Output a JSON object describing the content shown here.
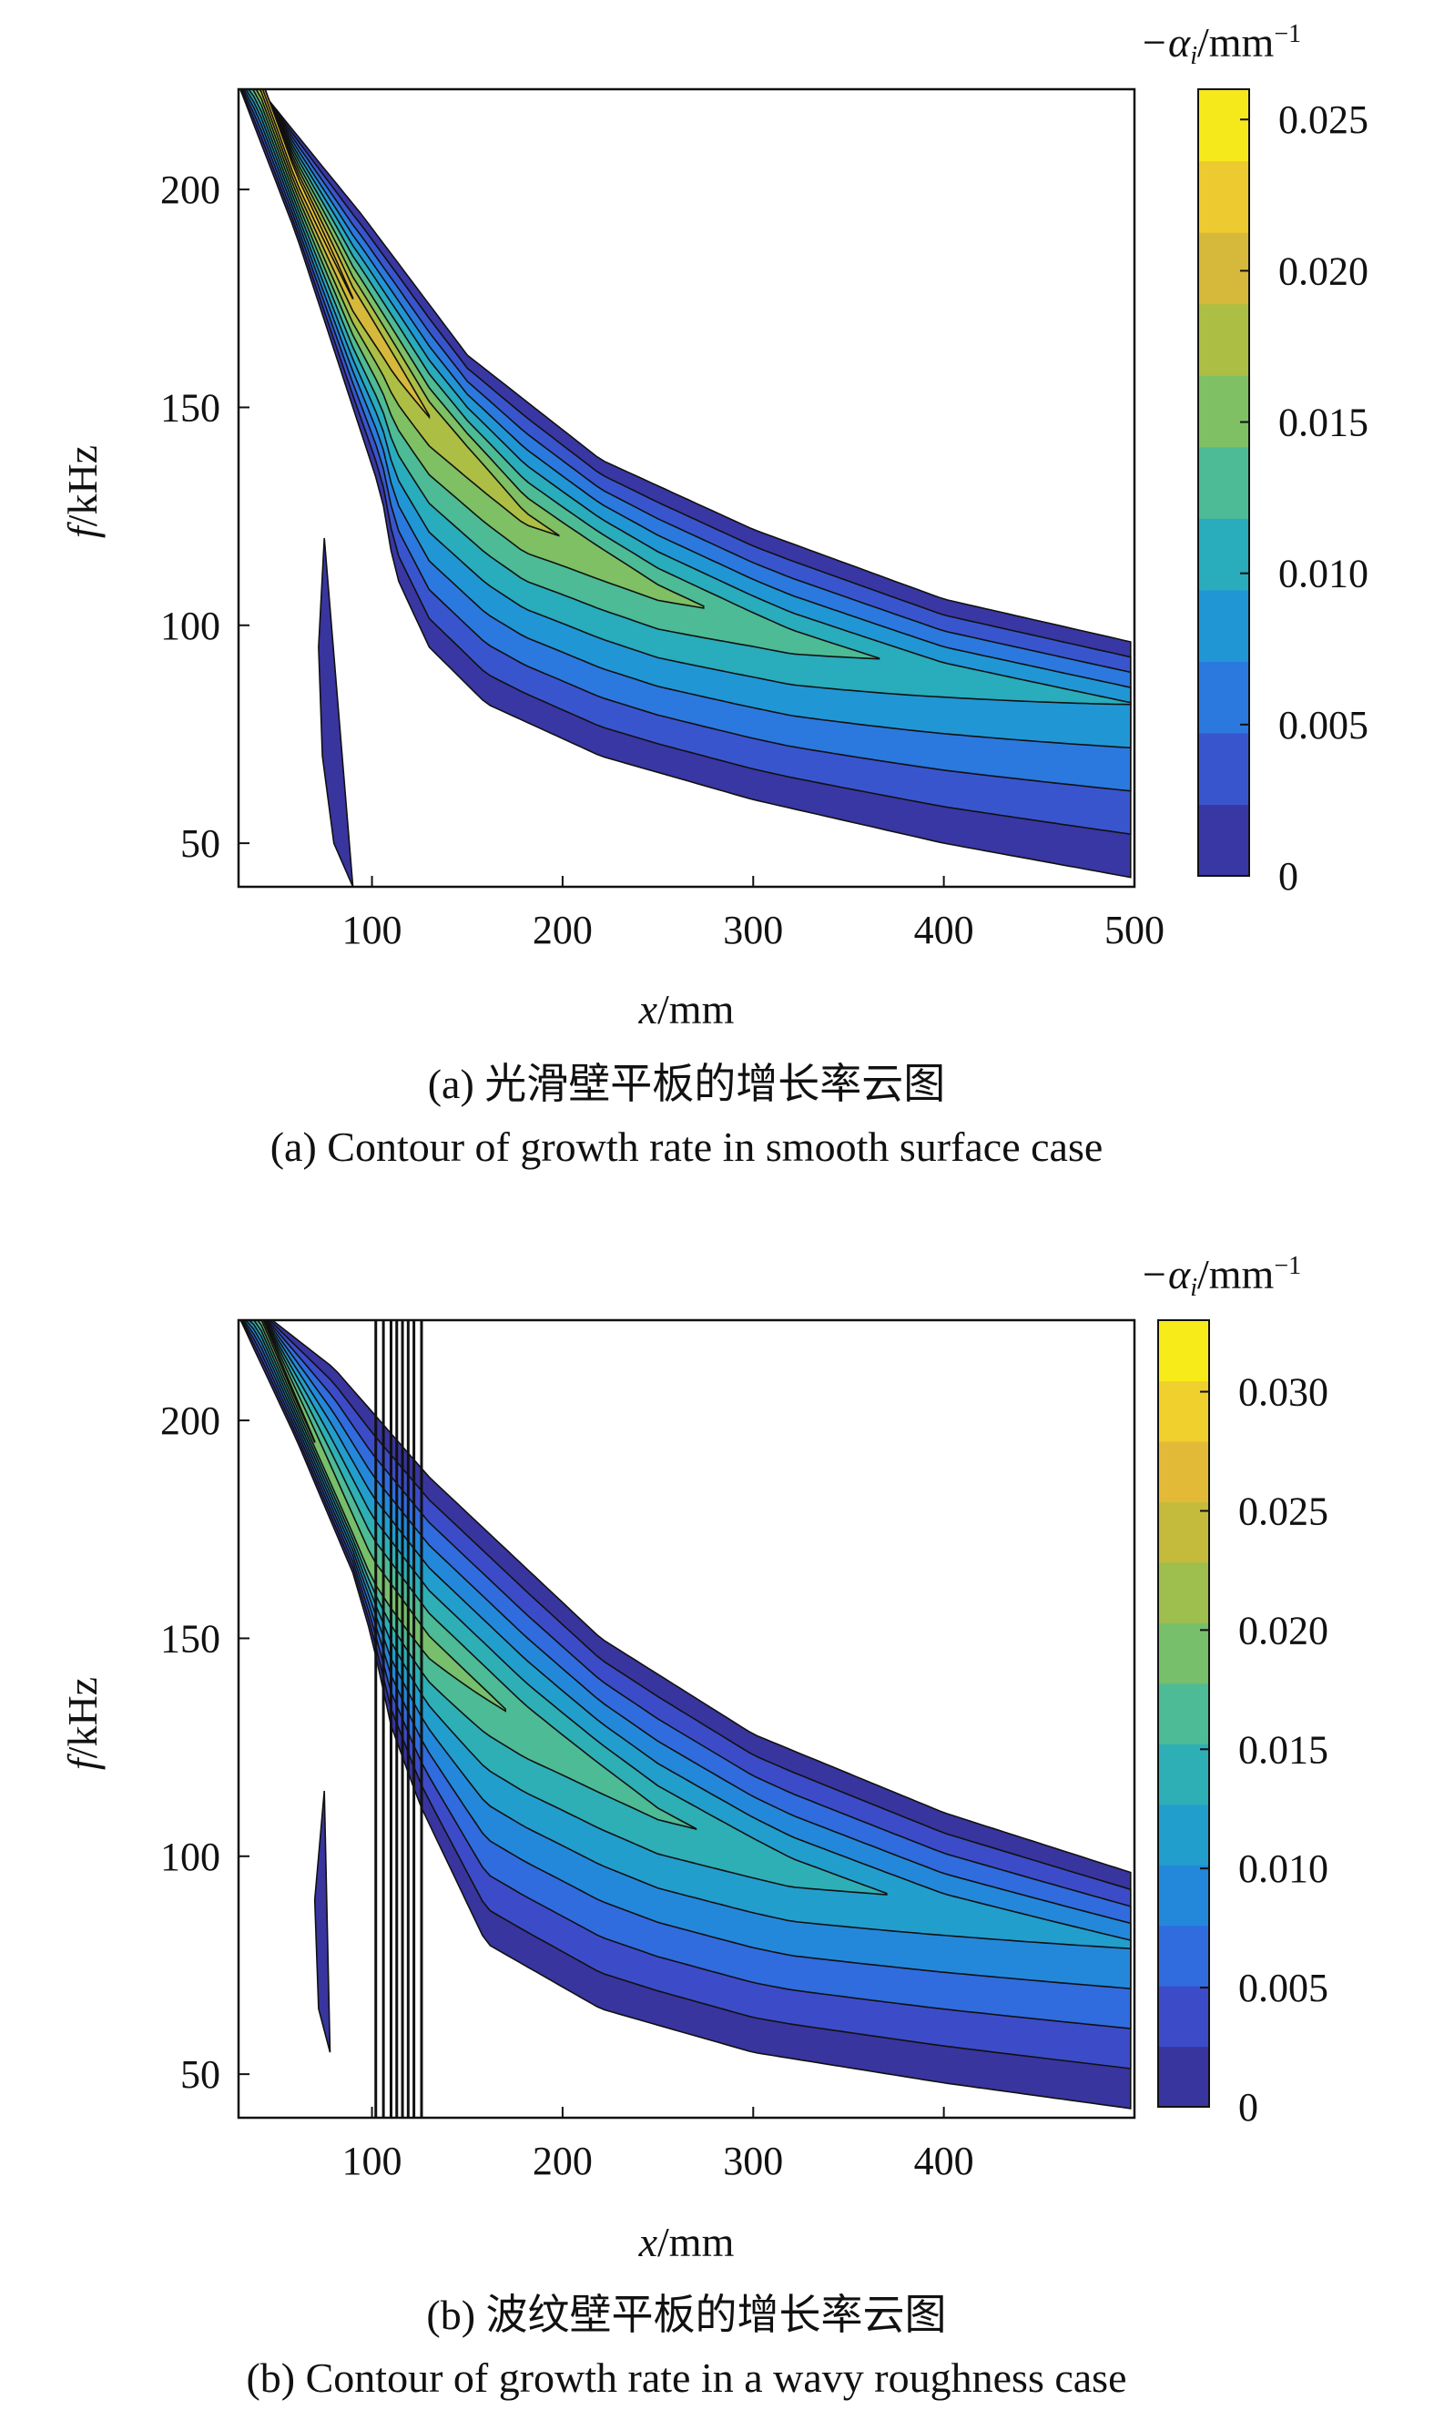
{
  "chart_data": [
    {
      "type": "contour",
      "caption_cn": "(a) 光滑壁平板的增长率云图",
      "caption_en": "(a) Contour of growth rate in smooth surface case",
      "xlabel_var": "x",
      "xlabel_unit": "/mm",
      "ylabel_var": "f",
      "ylabel_unit": "/kHz",
      "colorbar_label_prefix": "−α",
      "colorbar_label_sub": "i",
      "colorbar_label_unit": "/mm",
      "colorbar_label_sup": "−1",
      "xlim": [
        30,
        500
      ],
      "ylim": [
        40,
        223
      ],
      "xticks": [
        100,
        200,
        300,
        400,
        500
      ],
      "xtick_labels": [
        "100",
        "200",
        "300",
        "400",
        "500"
      ],
      "yticks": [
        50,
        100,
        150,
        200
      ],
      "ytick_labels": [
        "50",
        "100",
        "150",
        "200"
      ],
      "clim": [
        0,
        0.026
      ],
      "cticks": [
        0,
        0.005,
        0.01,
        0.015,
        0.02,
        0.025
      ],
      "ctick_labels": [
        "0",
        "0.005",
        "0.010",
        "0.015",
        "0.020",
        "0.025"
      ],
      "colormap": [
        "#352a87",
        "#3e46c4",
        "#2f6fe0",
        "#1f93d8",
        "#25abc0",
        "#4dbb95",
        "#83c05e",
        "#b6bd3e",
        "#e2b839",
        "#f3d42a",
        "#f9fb0e"
      ],
      "ridge": [
        [
          40,
          228
        ],
        [
          60,
          203
        ],
        [
          90,
          175
        ],
        [
          130,
          148
        ],
        [
          180,
          125
        ],
        [
          250,
          108
        ],
        [
          320,
          97
        ],
        [
          400,
          89
        ],
        [
          500,
          82
        ]
      ],
      "peak_growth": [
        [
          40,
          0.024
        ],
        [
          80,
          0.022
        ],
        [
          130,
          0.019
        ],
        [
          200,
          0.0165
        ],
        [
          300,
          0.0135
        ],
        [
          400,
          0.011
        ],
        [
          500,
          0.0095
        ]
      ],
      "band_upper": [
        [
          30,
          229
        ],
        [
          95,
          194
        ],
        [
          150,
          162
        ],
        [
          220,
          138
        ],
        [
          300,
          122
        ],
        [
          400,
          106
        ],
        [
          500,
          96
        ]
      ],
      "band_lower": [
        [
          30,
          224
        ],
        [
          60,
          190
        ],
        [
          90,
          150
        ],
        [
          105,
          130
        ],
        [
          112,
          112
        ],
        [
          130,
          95
        ],
        [
          160,
          82
        ],
        [
          220,
          70
        ],
        [
          300,
          60
        ],
        [
          400,
          50
        ],
        [
          500,
          42
        ]
      ],
      "lowfreq_region": [
        [
          75,
          120
        ],
        [
          72,
          95
        ],
        [
          74,
          70
        ],
        [
          80,
          50
        ],
        [
          90,
          40
        ]
      ]
    },
    {
      "type": "contour",
      "caption_cn": "(b) 波纹壁平板的增长率云图",
      "caption_en": "(b) Contour of growth rate in a wavy roughness case",
      "xlabel_var": "x",
      "xlabel_unit": "/mm",
      "ylabel_var": "f",
      "ylabel_unit": "/kHz",
      "colorbar_label_prefix": "−α",
      "colorbar_label_sub": "i",
      "colorbar_label_unit": "/mm",
      "colorbar_label_sup": "−1",
      "xlim": [
        30,
        500
      ],
      "ylim": [
        40,
        223
      ],
      "xticks": [
        100,
        200,
        300,
        400
      ],
      "xtick_labels": [
        "100",
        "200",
        "300",
        "400"
      ],
      "yticks": [
        50,
        100,
        150,
        200
      ],
      "ytick_labels": [
        "50",
        "100",
        "150",
        "200"
      ],
      "clim": [
        0,
        0.033
      ],
      "cticks": [
        0,
        0.005,
        0.01,
        0.015,
        0.02,
        0.025,
        0.03
      ],
      "ctick_labels": [
        "0",
        "0.005",
        "0.010",
        "0.015",
        "0.020",
        "0.025",
        "0.030"
      ],
      "colormap": [
        "#352a87",
        "#3e46c4",
        "#2f6fe0",
        "#1f93d8",
        "#25abc0",
        "#4dbb95",
        "#83c05e",
        "#b6bd3e",
        "#e2b839",
        "#f3d42a",
        "#f9fb0e"
      ],
      "ridge": [
        [
          40,
          226
        ],
        [
          60,
          205
        ],
        [
          80,
          185
        ],
        [
          100,
          165
        ],
        [
          130,
          148
        ],
        [
          180,
          130
        ],
        [
          250,
          110
        ],
        [
          320,
          97
        ],
        [
          400,
          88
        ],
        [
          500,
          80
        ]
      ],
      "peak_growth": [
        [
          40,
          0.022
        ],
        [
          80,
          0.02
        ],
        [
          130,
          0.019
        ],
        [
          200,
          0.017
        ],
        [
          300,
          0.0145
        ],
        [
          400,
          0.012
        ],
        [
          500,
          0.0105
        ]
      ],
      "band_upper": [
        [
          30,
          229
        ],
        [
          80,
          212
        ],
        [
          130,
          187
        ],
        [
          220,
          150
        ],
        [
          300,
          128
        ],
        [
          400,
          110
        ],
        [
          500,
          96
        ]
      ],
      "band_lower": [
        [
          30,
          224
        ],
        [
          60,
          196
        ],
        [
          90,
          165
        ],
        [
          100,
          150
        ],
        [
          110,
          130
        ],
        [
          125,
          112
        ],
        [
          160,
          80
        ],
        [
          220,
          65
        ],
        [
          300,
          55
        ],
        [
          400,
          48
        ],
        [
          500,
          42
        ]
      ],
      "roughness_x": [
        100,
        130
      ],
      "roughness_lines": [
        102,
        106,
        110,
        113,
        116,
        119,
        122,
        126
      ],
      "lowfreq_region": [
        [
          75,
          115
        ],
        [
          70,
          90
        ],
        [
          72,
          65
        ],
        [
          78,
          55
        ]
      ]
    }
  ]
}
